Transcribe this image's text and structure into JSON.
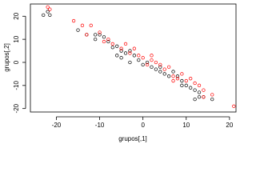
{
  "chart_data": {
    "type": "scatter",
    "xlabel": "grupos[,1]",
    "ylabel": "grupos[,2]",
    "xlim": [
      -26,
      21.5
    ],
    "ylim": [
      -21.5,
      25.3
    ],
    "xticks": [
      -20,
      -10,
      0,
      10,
      20
    ],
    "yticks": [
      -20,
      -10,
      0,
      10,
      20
    ],
    "series": [
      {
        "color": "#000000",
        "x": [
          -23,
          -22,
          -21.5,
          -15,
          -13,
          -11,
          -10,
          -11,
          -9,
          -8,
          -7,
          -6,
          -5,
          -4,
          -3,
          -6,
          -5,
          -3,
          -1,
          -2,
          0,
          1,
          2,
          3,
          4,
          5,
          6,
          7,
          8,
          9,
          10,
          11,
          12,
          13,
          13,
          14,
          16,
          12,
          9,
          4
        ],
        "values": [
          20.5,
          22,
          20.5,
          14,
          12,
          12,
          12,
          10,
          11,
          9,
          6.5,
          7,
          5,
          4,
          5,
          3,
          2,
          0,
          1,
          3,
          -1,
          0,
          -2,
          -3,
          -2,
          -5,
          -6,
          -4,
          -6,
          -10,
          -10,
          -11,
          -12,
          -13,
          -15,
          -15,
          -16,
          -16,
          -8,
          -4
        ]
      },
      {
        "color": "#ff0000",
        "x": [
          -22,
          -21.5,
          -16,
          -14,
          -12,
          -13,
          -10,
          -8,
          -7,
          -4,
          -5,
          -2,
          -3,
          -1,
          0,
          2,
          1,
          3,
          4,
          5,
          6,
          7,
          8,
          9,
          10,
          11,
          12,
          13,
          14,
          14,
          16,
          21,
          7,
          2,
          -9
        ],
        "values": [
          24,
          23,
          18,
          16,
          16,
          12,
          13,
          10,
          8,
          8,
          6,
          6,
          4,
          3,
          2,
          3,
          -1,
          0,
          -1,
          -3,
          -2,
          -6,
          -7,
          -5,
          -8,
          -7,
          -9,
          -10,
          -12,
          -15,
          -14,
          -19,
          -8,
          1,
          9
        ]
      }
    ]
  }
}
